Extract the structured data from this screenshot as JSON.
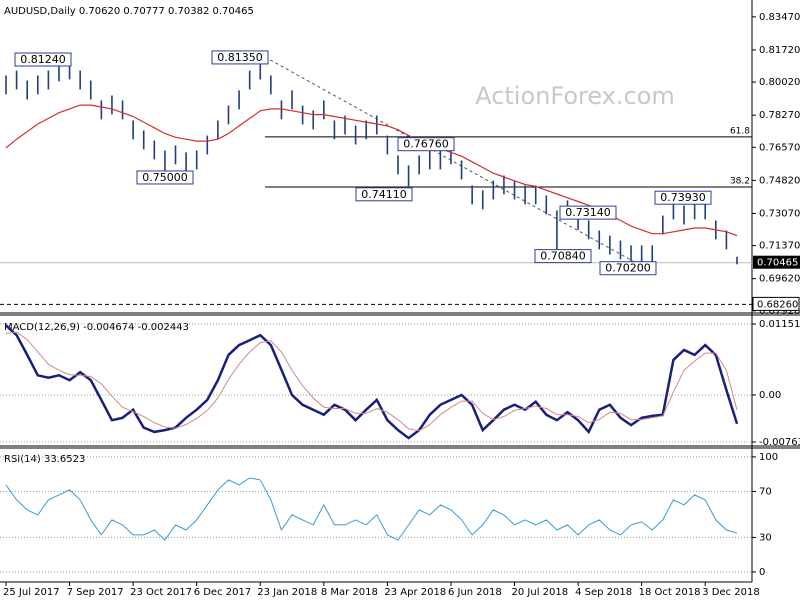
{
  "chart_data": [
    {
      "type": "ohlc",
      "title": "AUDUSD,Daily  0.70620 0.70777 0.70382 0.70465",
      "watermark": "ActionForex.com",
      "color": "#1f3f7a",
      "ma_color": "#d0302e",
      "categories": [
        "25 Jul 2017",
        null,
        null,
        null,
        null,
        null,
        "7 Sep 2017",
        null,
        null,
        null,
        null,
        null,
        "23 Oct 2017",
        null,
        null,
        null,
        null,
        null,
        "6 Dec 2017",
        null,
        null,
        null,
        null,
        null,
        "23 Jan 2018",
        null,
        null,
        null,
        null,
        null,
        "8 Mar 2018",
        null,
        null,
        null,
        null,
        null,
        "23 Apr 2018",
        null,
        null,
        null,
        null,
        null,
        "6 Jun 2018",
        null,
        null,
        null,
        null,
        null,
        "20 Jul 2018",
        null,
        null,
        null,
        null,
        null,
        "4 Sep 2018",
        null,
        null,
        null,
        null,
        null,
        "18 Oct 2018",
        null,
        null,
        null,
        null,
        null,
        "3 Dec 2018",
        null,
        null,
        null
      ],
      "high": [
        0.8037,
        0.8063,
        0.801,
        0.8037,
        0.8063,
        0.8106,
        0.8124,
        0.8063,
        0.801,
        0.7905,
        0.7931,
        0.7905,
        0.7799,
        0.7746,
        0.7693,
        0.764,
        0.7667,
        0.763,
        0.764,
        0.7719,
        0.7799,
        0.7878,
        0.7958,
        0.8063,
        0.8135,
        0.8037,
        0.7905,
        0.7958,
        0.7878,
        0.7852,
        0.7905,
        0.7799,
        0.7825,
        0.7772,
        0.7799,
        0.7825,
        0.7719,
        0.7614,
        0.7561,
        0.7614,
        0.764,
        0.7676,
        0.7667,
        0.7587,
        0.7455,
        0.7429,
        0.7481,
        0.7508,
        0.7481,
        0.7455,
        0.7455,
        0.7402,
        0.7323,
        0.7376,
        0.7314,
        0.727,
        0.7217,
        0.719,
        0.7164,
        0.7138,
        0.7138,
        0.7138,
        0.7296,
        0.7376,
        0.7349,
        0.7376,
        0.7393,
        0.727,
        0.7217,
        0.7078
      ],
      "low": [
        0.7937,
        0.7963,
        0.791,
        0.7937,
        0.7963,
        0.8006,
        0.8016,
        0.7963,
        0.791,
        0.7805,
        0.7831,
        0.7805,
        0.7699,
        0.7646,
        0.7593,
        0.75,
        0.7567,
        0.753,
        0.754,
        0.7619,
        0.7699,
        0.7778,
        0.7858,
        0.7963,
        0.8016,
        0.7937,
        0.7805,
        0.7858,
        0.7778,
        0.7752,
        0.7805,
        0.7699,
        0.7725,
        0.7672,
        0.7699,
        0.7725,
        0.7619,
        0.7514,
        0.7411,
        0.7514,
        0.754,
        0.754,
        0.7567,
        0.7487,
        0.7355,
        0.7329,
        0.7381,
        0.7408,
        0.7381,
        0.7355,
        0.7355,
        0.7302,
        0.7084,
        0.7276,
        0.722,
        0.717,
        0.7117,
        0.709,
        0.7064,
        0.702,
        0.7038,
        0.7038,
        0.7196,
        0.7276,
        0.7249,
        0.7276,
        0.7276,
        0.717,
        0.7117,
        0.7038
      ],
      "ma_values": [
        0.7654,
        0.77,
        0.774,
        0.778,
        0.781,
        0.784,
        0.786,
        0.788,
        0.788,
        0.787,
        0.786,
        0.784,
        0.782,
        0.779,
        0.776,
        0.773,
        0.771,
        0.77,
        0.769,
        0.769,
        0.77,
        0.773,
        0.777,
        0.781,
        0.785,
        0.786,
        0.786,
        0.785,
        0.784,
        0.783,
        0.783,
        0.782,
        0.781,
        0.78,
        0.779,
        0.778,
        0.777,
        0.775,
        0.772,
        0.769,
        0.767,
        0.765,
        0.763,
        0.761,
        0.758,
        0.755,
        0.752,
        0.75,
        0.748,
        0.746,
        0.745,
        0.743,
        0.741,
        0.739,
        0.737,
        0.735,
        0.733,
        0.73,
        0.727,
        0.724,
        0.722,
        0.72,
        0.72,
        0.721,
        0.722,
        0.723,
        0.723,
        0.722,
        0.721,
        0.719
      ],
      "ylim": [
        0.6791,
        0.8415
      ],
      "yticks": [
        {
          "value": 0.8347,
          "label": "0.83470"
        },
        {
          "value": 0.8172,
          "label": "0.81720"
        },
        {
          "value": 0.8002,
          "label": "0.80020"
        },
        {
          "value": 0.7827,
          "label": "0.78270"
        },
        {
          "value": 0.7657,
          "label": "0.76570"
        },
        {
          "value": 0.7482,
          "label": "0.74820"
        },
        {
          "value": 0.7307,
          "label": "0.73070"
        },
        {
          "value": 0.7137,
          "label": "0.71370"
        },
        {
          "value": 0.6962,
          "label": "0.69620"
        },
        {
          "value": 0.6792,
          "label": "0.67920"
        }
      ],
      "annotations": [
        {
          "value": 0.8124,
          "label": "0.81240"
        },
        {
          "value": 0.8135,
          "label": "0.81350"
        },
        {
          "value": 0.75,
          "label": "0.75000"
        },
        {
          "value": 0.7676,
          "label": "0.76760"
        },
        {
          "value": 0.7411,
          "label": "0.74110"
        },
        {
          "value": 0.7314,
          "label": "0.73140"
        },
        {
          "value": 0.7084,
          "label": "0.70840"
        },
        {
          "value": 0.702,
          "label": "0.70200"
        },
        {
          "value": 0.7393,
          "label": "0.73930"
        }
      ],
      "fibo": [
        {
          "value": 0.7712,
          "label": "61.8"
        },
        {
          "value": 0.7447,
          "label": "38.2"
        }
      ],
      "price_line": {
        "value": 0.70465,
        "label": "0.70465"
      },
      "level_line": {
        "value": 0.6826,
        "label": "0.68260"
      }
    },
    {
      "type": "line",
      "title": "MACD(12,26,9) -0.004674 -0.002443",
      "grid": true,
      "series": [
        {
          "color": "#1a1f7a",
          "values": [
            0.0113,
            0.0097,
            0.0065,
            0.0032,
            0.0028,
            0.0032,
            0.0024,
            0.0037,
            0.0024,
            -0.0008,
            -0.0041,
            -0.0037,
            -0.0024,
            -0.0053,
            -0.006,
            -0.0057,
            -0.0053,
            -0.0037,
            -0.0024,
            -0.0008,
            0.0024,
            0.0065,
            0.0081,
            0.0089,
            0.0097,
            0.0081,
            0.0041,
            0,
            -0.0016,
            -0.0024,
            -0.0032,
            -0.0016,
            -0.0024,
            -0.0041,
            -0.0024,
            -0.0008,
            -0.0041,
            -0.0057,
            -0.007,
            -0.0057,
            -0.0032,
            -0.0016,
            -0.0008,
            0,
            -0.0016,
            -0.0057,
            -0.0041,
            -0.0024,
            -0.0016,
            -0.0024,
            -0.0011,
            -0.0032,
            -0.0041,
            -0.0028,
            -0.0041,
            -0.006,
            -0.0024,
            -0.0016,
            -0.0037,
            -0.0049,
            -0.0037,
            -0.0034,
            -0.0032,
            0.0057,
            0.0073,
            0.0065,
            0.0081,
            0.0065,
            0.0008,
            -0.004674
          ]
        },
        {
          "color": "#d08a8a",
          "values": [
            0.01,
            0.0102,
            0.009,
            0.007,
            0.005,
            0.004,
            0.0033,
            0.0032,
            0.003,
            0.0018,
            -0.0002,
            -0.002,
            -0.0027,
            -0.0035,
            -0.0045,
            -0.0052,
            -0.0054,
            -0.0048,
            -0.0038,
            -0.0025,
            -0.0005,
            0.0025,
            0.005,
            0.007,
            0.0085,
            0.0088,
            0.007,
            0.004,
            0.0015,
            -0.0005,
            -0.002,
            -0.0022,
            -0.0022,
            -0.003,
            -0.003,
            -0.0022,
            -0.0028,
            -0.004,
            -0.0055,
            -0.0058,
            -0.0048,
            -0.0032,
            -0.002,
            -0.001,
            -0.001,
            -0.003,
            -0.004,
            -0.0035,
            -0.0025,
            -0.0022,
            -0.0018,
            -0.0022,
            -0.0032,
            -0.0032,
            -0.0035,
            -0.0045,
            -0.004,
            -0.0028,
            -0.003,
            -0.004,
            -0.004,
            -0.0037,
            -0.0034,
            0.0005,
            0.004,
            0.0055,
            0.0068,
            0.0068,
            0.004,
            -0.002443
          ]
        }
      ],
      "ylim": [
        -0.0078,
        0.0125
      ],
      "yticks": [
        0.011517,
        {
          "value": 0,
          "label": "0.00"
        },
        -0.007634
      ]
    },
    {
      "type": "line",
      "title": "RSI(14) 33.6523",
      "grid": true,
      "series": [
        {
          "color": "#3a9ad9",
          "values": [
            75.7,
            62.6,
            53.9,
            49.6,
            62.6,
            67,
            71.3,
            62.6,
            45.2,
            32.2,
            45.2,
            40.9,
            32.2,
            32.2,
            36.5,
            27.8,
            40.9,
            36.5,
            45.2,
            58.3,
            71.3,
            80,
            75.7,
            81.7,
            80,
            62.6,
            36.5,
            49.6,
            45.2,
            40.9,
            58.3,
            40.9,
            40.9,
            45.2,
            40.9,
            49.6,
            32.2,
            27.8,
            40.9,
            53.9,
            49.6,
            58.3,
            53.9,
            45.2,
            32.2,
            40.9,
            53.9,
            49.6,
            40.9,
            45.2,
            40.9,
            45.2,
            36.5,
            40.9,
            32.2,
            40.9,
            45.2,
            36.5,
            32.2,
            40.9,
            43.5,
            36.5,
            45.2,
            62.6,
            58.3,
            67,
            62.6,
            45.2,
            36.5,
            33.6523
          ]
        }
      ],
      "ylim": [
        -7,
        106
      ],
      "yticks": [
        100,
        70,
        30,
        0
      ]
    }
  ]
}
